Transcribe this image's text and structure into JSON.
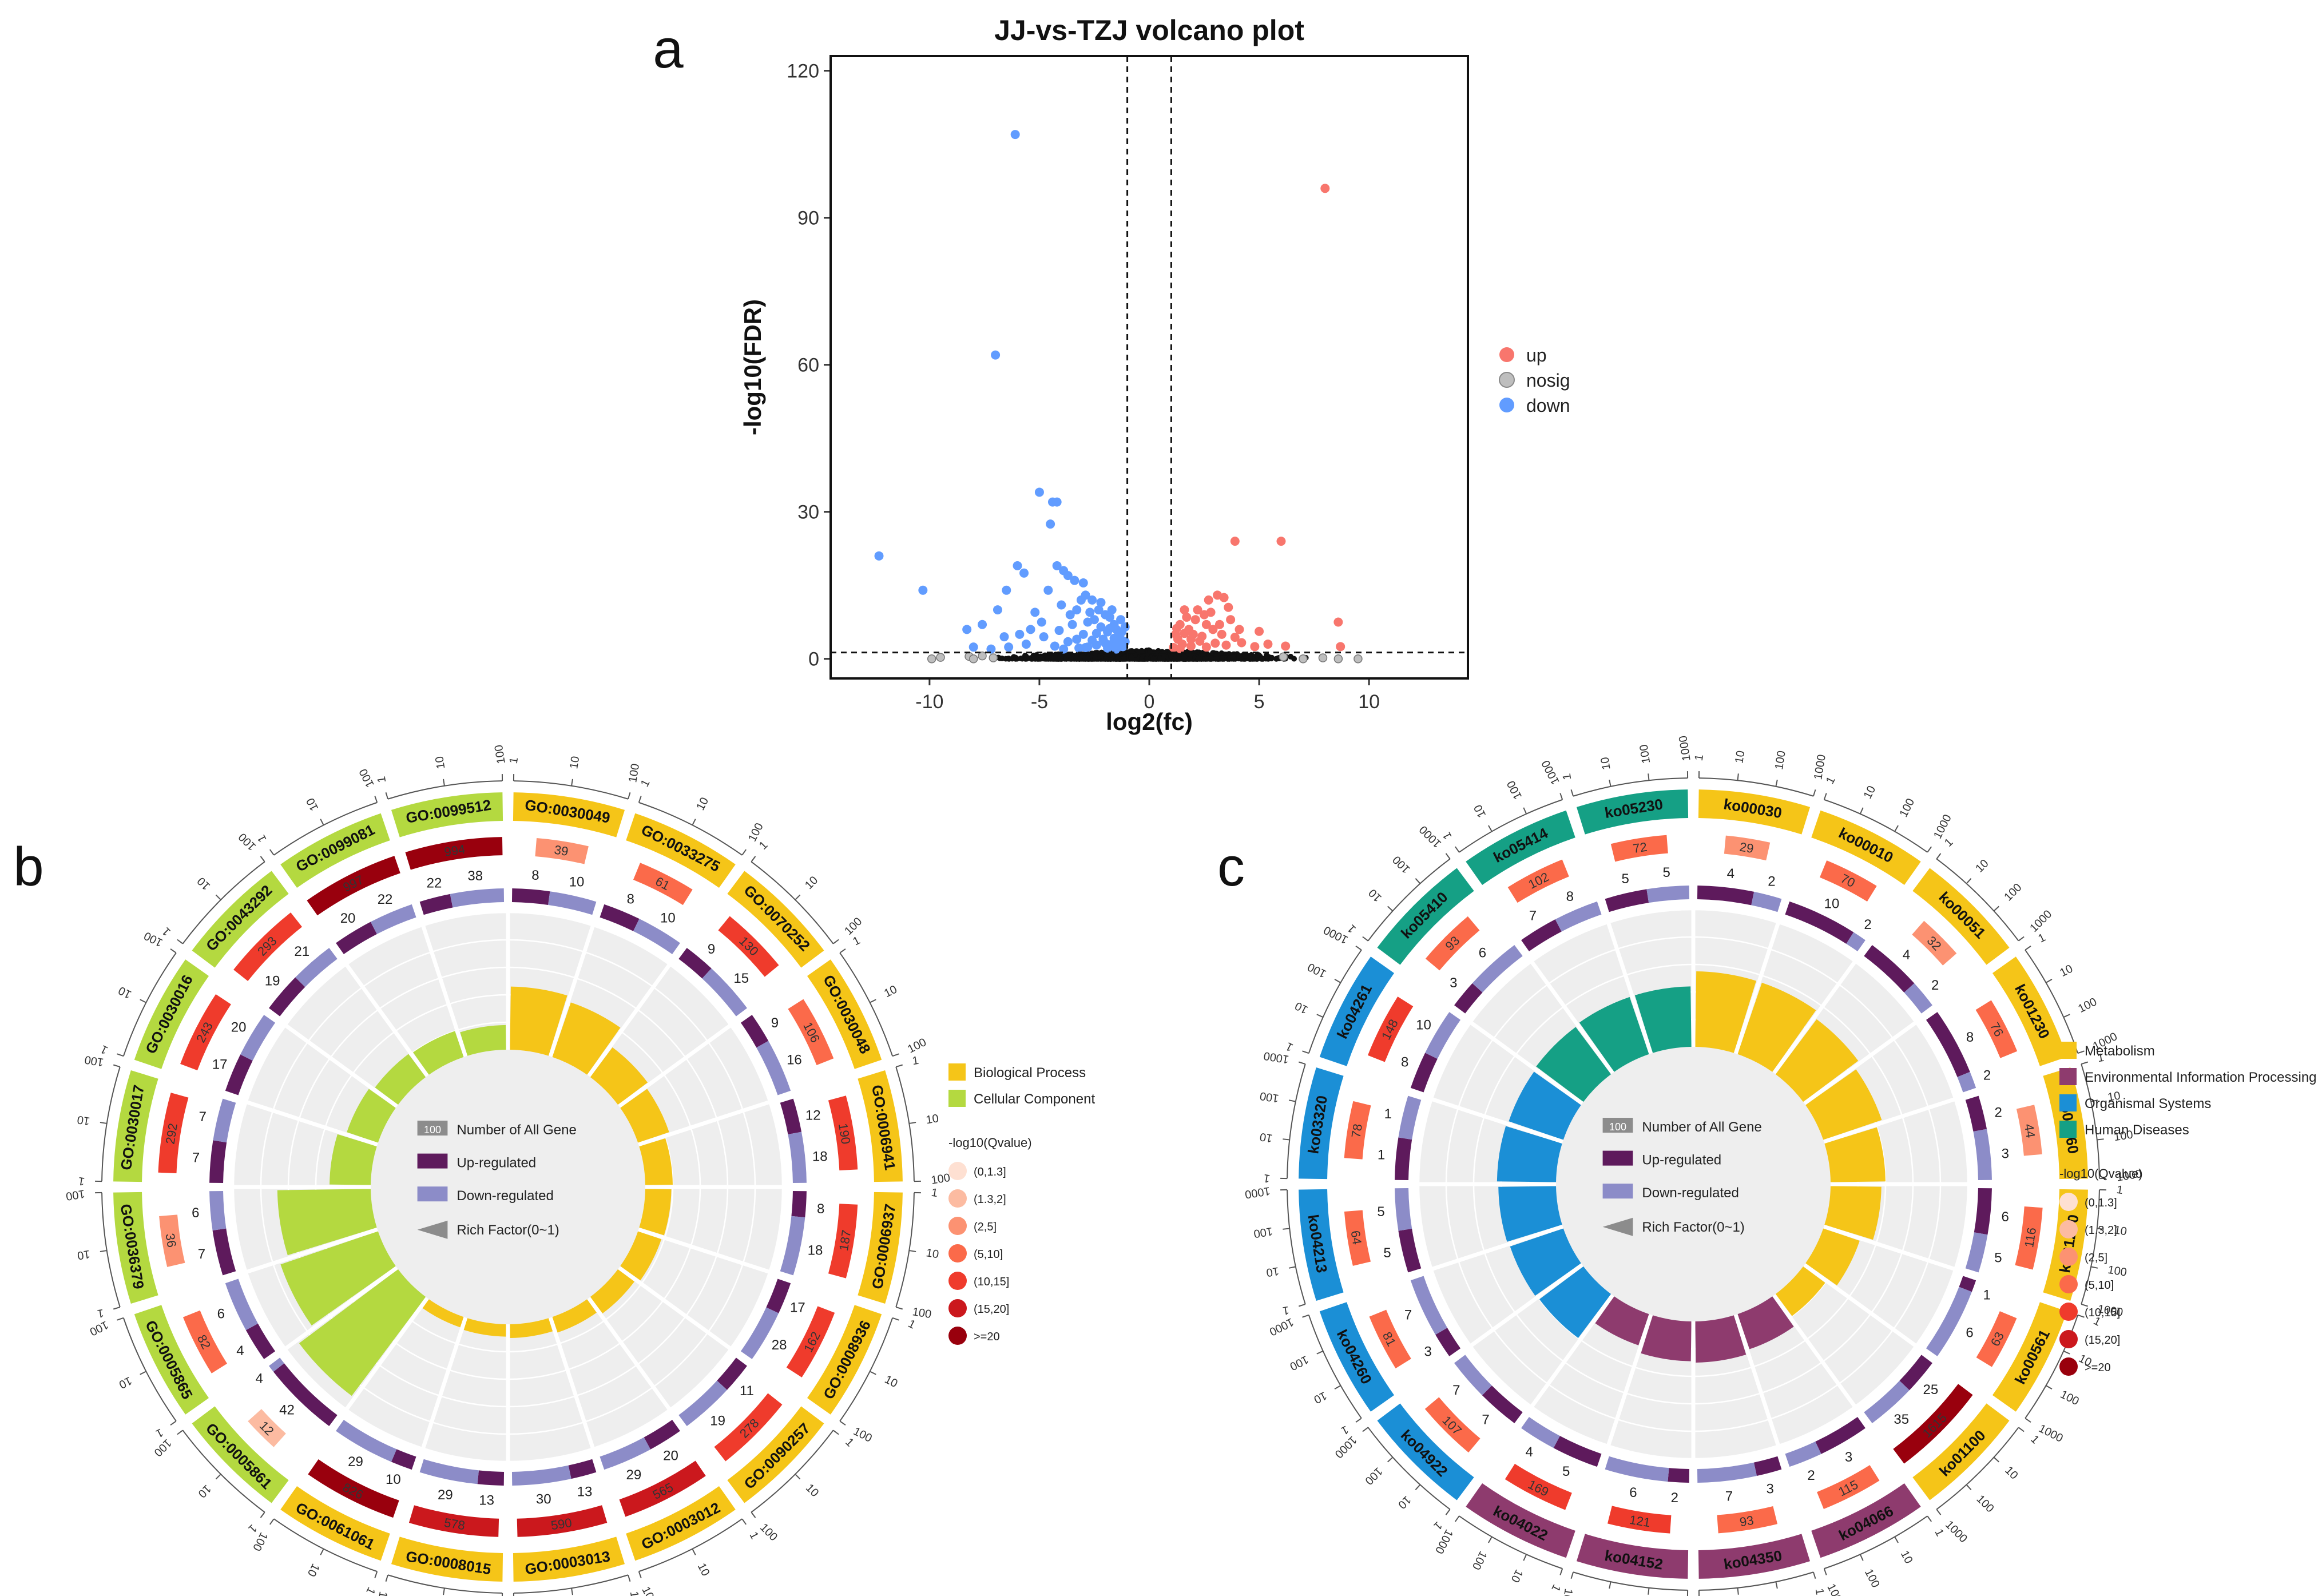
{
  "panels": {
    "a": "a",
    "b": "b",
    "c": "c"
  },
  "chart_data": [
    {
      "id": "volcano",
      "type": "scatter",
      "title": "JJ-vs-TZJ volcano plot",
      "xlabel": "log2(fc)",
      "ylabel": "-log10(FDR)",
      "xlim": [
        -14.5,
        14.5
      ],
      "ylim": [
        -4,
        123
      ],
      "xticks": [
        -10,
        -5,
        0,
        5,
        10
      ],
      "yticks": [
        0,
        30,
        60,
        90,
        120
      ],
      "thresholds": {
        "x": [
          -1,
          1
        ],
        "y": 1.3
      },
      "legend": [
        {
          "label": "up",
          "color": "#F8766D"
        },
        {
          "label": "nosig",
          "color": "#BEBEBE"
        },
        {
          "label": "down",
          "color": "#619CFF"
        }
      ],
      "series": [
        {
          "name": "down",
          "color": "#619CFF",
          "points": [
            [
              -6.1,
              107
            ],
            [
              -7.0,
              62
            ],
            [
              -5.0,
              34
            ],
            [
              -4.4,
              32
            ],
            [
              -4.2,
              32
            ],
            [
              -4.5,
              27.5
            ],
            [
              -12.3,
              21
            ],
            [
              -10.3,
              14
            ],
            [
              -6.0,
              19
            ],
            [
              -5.7,
              17.5
            ],
            [
              -6.5,
              14
            ],
            [
              -6.9,
              10
            ],
            [
              -7.6,
              7
            ],
            [
              -8.3,
              6
            ],
            [
              -4.2,
              19
            ],
            [
              -3.9,
              18
            ],
            [
              -3.7,
              17
            ],
            [
              -3.4,
              16
            ],
            [
              -3.0,
              15.5
            ],
            [
              -4.6,
              14
            ],
            [
              -2.9,
              13
            ],
            [
              -3.1,
              12
            ],
            [
              -2.6,
              12
            ],
            [
              -4.0,
              11
            ],
            [
              -3.3,
              10
            ],
            [
              -2.3,
              10
            ],
            [
              -2.0,
              9
            ],
            [
              -1.8,
              8.5
            ],
            [
              -2.5,
              8
            ],
            [
              -5.2,
              9.5
            ],
            [
              -3.5,
              7
            ],
            [
              -2.8,
              7.5
            ],
            [
              -1.6,
              7
            ],
            [
              -2.2,
              6.5
            ],
            [
              -1.5,
              6
            ],
            [
              -1.9,
              5.5
            ],
            [
              -3.0,
              5
            ],
            [
              -1.4,
              5
            ],
            [
              -4.8,
              4.5
            ],
            [
              -2.1,
              4
            ],
            [
              -2.6,
              3.8
            ],
            [
              -1.3,
              4
            ],
            [
              -3.7,
              3.5
            ],
            [
              -1.7,
              3
            ],
            [
              -2.4,
              2.8
            ],
            [
              -5.6,
              3
            ],
            [
              -1.2,
              2.5
            ],
            [
              -1.9,
              2.2
            ],
            [
              -3.2,
              2.2
            ],
            [
              -4.3,
              2.6
            ],
            [
              -6.4,
              2.4
            ],
            [
              -7.2,
              2.0
            ],
            [
              -1.5,
              2
            ],
            [
              -2.8,
              2.4
            ],
            [
              -3.9,
              2
            ],
            [
              -8.0,
              2.4
            ],
            [
              -4.9,
              7.5
            ],
            [
              -5.4,
              6
            ],
            [
              -6.6,
              4.5
            ],
            [
              -2.2,
              11.5
            ],
            [
              -1.7,
              10
            ],
            [
              -1.3,
              8
            ],
            [
              -2.7,
              9.5
            ],
            [
              -3.6,
              9
            ],
            [
              -1.8,
              6.2
            ],
            [
              -1.25,
              5.5
            ],
            [
              -1.1,
              3.5
            ],
            [
              -1.6,
              4.2
            ],
            [
              -2.4,
              5.2
            ],
            [
              -2.0,
              3.2
            ],
            [
              -1.4,
              2.8
            ],
            [
              -3.3,
              4
            ],
            [
              -4.1,
              5.8
            ],
            [
              -2.9,
              2.3
            ],
            [
              -5.9,
              5
            ],
            [
              -1.1,
              6.5
            ]
          ]
        },
        {
          "name": "up",
          "color": "#F8766D",
          "points": [
            [
              8.0,
              96
            ],
            [
              6.0,
              24
            ],
            [
              3.9,
              24
            ],
            [
              8.6,
              7.5
            ],
            [
              3.1,
              13
            ],
            [
              3.4,
              12.5
            ],
            [
              2.7,
              12
            ],
            [
              2.5,
              9
            ],
            [
              2.1,
              8
            ],
            [
              1.6,
              10
            ],
            [
              1.4,
              7
            ],
            [
              1.8,
              6
            ],
            [
              2.0,
              5
            ],
            [
              2.6,
              7
            ],
            [
              2.9,
              6
            ],
            [
              3.3,
              5
            ],
            [
              3.7,
              8
            ],
            [
              4.1,
              6
            ],
            [
              1.3,
              4
            ],
            [
              1.5,
              3
            ],
            [
              1.9,
              2.6
            ],
            [
              2.3,
              3.6
            ],
            [
              2.6,
              2.4
            ],
            [
              3.0,
              3.2
            ],
            [
              3.5,
              2.8
            ],
            [
              4.2,
              3.3
            ],
            [
              4.8,
              2.5
            ],
            [
              5.4,
              3
            ],
            [
              1.2,
              5
            ],
            [
              1.7,
              8.5
            ],
            [
              2.2,
              10
            ],
            [
              2.8,
              9.5
            ],
            [
              3.6,
              10.5
            ],
            [
              1.1,
              2.3
            ],
            [
              1.4,
              2.1
            ],
            [
              6.2,
              2.6
            ],
            [
              8.7,
              2.5
            ],
            [
              2.4,
              4.6
            ],
            [
              1.9,
              4
            ],
            [
              3.2,
              7
            ],
            [
              3.9,
              4.4
            ],
            [
              5.0,
              5.6
            ],
            [
              1.25,
              6.2
            ],
            [
              1.6,
              5.2
            ]
          ]
        }
      ]
    },
    {
      "id": "go_circos",
      "type": "circos",
      "row_values": {
        "number_all": [
          39,
          61,
          130,
          106,
          190,
          187,
          162,
          278,
          565,
          590,
          578,
          826,
          12,
          82,
          36,
          292,
          243,
          293,
          997,
          994
        ],
        "up": [
          8,
          8,
          9,
          9,
          12,
          8,
          17,
          11,
          20,
          13,
          13,
          10,
          42,
          4,
          7,
          7,
          17,
          19,
          20,
          22
        ],
        "down": [
          10,
          10,
          15,
          16,
          18,
          18,
          28,
          19,
          29,
          30,
          29,
          29,
          4,
          6,
          6,
          7,
          20,
          21,
          22,
          38
        ]
      },
      "categories": [
        {
          "id": "GO:0030049",
          "class": 0,
          "total": 39,
          "up": 8,
          "down": 10,
          "rich": 0.46
        },
        {
          "id": "GO:0033275",
          "class": 0,
          "total": 61,
          "up": 8,
          "down": 10,
          "rich": 0.42
        },
        {
          "id": "GO:0070252",
          "class": 0,
          "total": 130,
          "up": 9,
          "down": 15,
          "rich": 0.27
        },
        {
          "id": "GO:0030048",
          "class": 0,
          "total": 106,
          "up": 9,
          "down": 16,
          "rich": 0.24
        },
        {
          "id": "GO:0006941",
          "class": 0,
          "total": 190,
          "up": 12,
          "down": 18,
          "rich": 0.2
        },
        {
          "id": "GO:0006937",
          "class": 0,
          "total": 187,
          "up": 8,
          "down": 18,
          "rich": 0.19
        },
        {
          "id": "GO:0008936",
          "class": 0,
          "total": 162,
          "up": 17,
          "down": 28,
          "rich": 0.18
        },
        {
          "id": "GO:0090257",
          "class": 0,
          "total": 278,
          "up": 11,
          "down": 19,
          "rich": 0.15
        },
        {
          "id": "GO:0003012",
          "class": 0,
          "total": 565,
          "up": 20,
          "down": 29,
          "rich": 0.12
        },
        {
          "id": "GO:0003013",
          "class": 0,
          "total": 590,
          "up": 13,
          "down": 30,
          "rich": 0.1
        },
        {
          "id": "GO:0008015",
          "class": 0,
          "total": 578,
          "up": 13,
          "down": 29,
          "rich": 0.09
        },
        {
          "id": "GO:0061061",
          "class": 0,
          "total": 826,
          "up": 10,
          "down": 29,
          "rich": 0.08
        },
        {
          "id": "GO:0005861",
          "class": 1,
          "total": 12,
          "up": 42,
          "down": 4,
          "rich": 0.9
        },
        {
          "id": "GO:0005865",
          "class": 1,
          "total": 82,
          "up": 4,
          "down": 6,
          "rich": 0.75
        },
        {
          "id": "GO:0036379",
          "class": 1,
          "total": 36,
          "up": 7,
          "down": 6,
          "rich": 0.68
        },
        {
          "id": "GO:0030017",
          "class": 1,
          "total": 292,
          "up": 7,
          "down": 7,
          "rich": 0.3
        },
        {
          "id": "GO:0030016",
          "class": 1,
          "total": 243,
          "up": 17,
          "down": 20,
          "rich": 0.24
        },
        {
          "id": "GO:0043292",
          "class": 1,
          "total": 293,
          "up": 19,
          "down": 21,
          "rich": 0.21
        },
        {
          "id": "GO:0099081",
          "class": 1,
          "total": 997,
          "up": 20,
          "down": 22,
          "rich": 0.2
        },
        {
          "id": "GO:0099512",
          "class": 1,
          "total": 994,
          "up": 22,
          "down": 38,
          "rich": 0.18
        }
      ],
      "classes": [
        {
          "label": "Biological Process",
          "color": "#F5C518"
        },
        {
          "label": "Cellular Component",
          "color": "#B4D940"
        }
      ],
      "scale_labels": [
        "1",
        "10",
        "100"
      ],
      "center_legend": [
        "100",
        "Number of All Gene",
        "Up-regulated",
        "Down-regulated",
        "Rich Factor(0~1)"
      ],
      "qvalue_title": "-log10(Qvalue)",
      "qvalue_bins": [
        {
          "label": "(0,1.3]",
          "color": "#FEE0D2"
        },
        {
          "label": "(1.3,2]",
          "color": "#FCBBA1"
        },
        {
          "label": "(2,5]",
          "color": "#FC9272"
        },
        {
          "label": "(5,10]",
          "color": "#FB6A4A"
        },
        {
          "label": "(10,15]",
          "color": "#EF3B2C"
        },
        {
          "label": "(15,20]",
          "color": "#CB181D"
        },
        {
          "label": ">=20",
          "color": "#99000D"
        }
      ]
    },
    {
      "id": "kegg_circos",
      "type": "circos",
      "row_values": {
        "number_all": [
          29,
          70,
          32,
          76,
          44,
          116,
          63,
          1615,
          115,
          93,
          121,
          169,
          107,
          81,
          64,
          78,
          148,
          93,
          102,
          72
        ],
        "up": [
          4,
          10,
          4,
          8,
          2,
          6,
          1,
          25,
          3,
          3,
          2,
          5,
          7,
          3,
          5,
          1,
          8,
          3,
          7,
          5
        ],
        "down": [
          2,
          2,
          2,
          2,
          3,
          5,
          6,
          35,
          2,
          7,
          6,
          4,
          7,
          7,
          5,
          1,
          10,
          6,
          8,
          5
        ]
      },
      "categories": [
        {
          "id": "ko00030",
          "class": 0,
          "total": 29,
          "up": 4,
          "down": 2,
          "rich": 0.55
        },
        {
          "id": "ko00010",
          "class": 0,
          "total": 70,
          "up": 10,
          "down": 2,
          "rich": 0.55
        },
        {
          "id": "ko00051",
          "class": 0,
          "total": 32,
          "up": 4,
          "down": 2,
          "rich": 0.5
        },
        {
          "id": "ko01230",
          "class": 0,
          "total": 76,
          "up": 8,
          "down": 2,
          "rich": 0.45
        },
        {
          "id": "ko00260",
          "class": 0,
          "total": 44,
          "up": 2,
          "down": 3,
          "rich": 0.4
        },
        {
          "id": "ko01200",
          "class": 0,
          "total": 116,
          "up": 6,
          "down": 5,
          "rich": 0.37
        },
        {
          "id": "ko00561",
          "class": 0,
          "total": 63,
          "up": 1,
          "down": 6,
          "rich": 0.28
        },
        {
          "id": "ko01100",
          "class": 0,
          "total": 1615,
          "up": 25,
          "down": 35,
          "rich": 0.2
        },
        {
          "id": "ko04066",
          "class": 1,
          "total": 115,
          "up": 3,
          "down": 2,
          "rich": 0.27
        },
        {
          "id": "ko04350",
          "class": 1,
          "total": 93,
          "up": 3,
          "down": 7,
          "rich": 0.3
        },
        {
          "id": "ko04152",
          "class": 1,
          "total": 121,
          "up": 2,
          "down": 6,
          "rich": 0.29
        },
        {
          "id": "ko04022",
          "class": 1,
          "total": 169,
          "up": 5,
          "down": 4,
          "rich": 0.24
        },
        {
          "id": "ko04922",
          "class": 2,
          "total": 107,
          "up": 7,
          "down": 7,
          "rich": 0.4
        },
        {
          "id": "ko04260",
          "class": 2,
          "total": 81,
          "up": 3,
          "down": 7,
          "rich": 0.41
        },
        {
          "id": "ko04213",
          "class": 2,
          "total": 64,
          "up": 5,
          "down": 5,
          "rich": 0.42
        },
        {
          "id": "ko03320",
          "class": 2,
          "total": 78,
          "up": 1,
          "down": 1,
          "rich": 0.43
        },
        {
          "id": "ko04261",
          "class": 2,
          "total": 148,
          "up": 8,
          "down": 10,
          "rich": 0.42
        },
        {
          "id": "ko05410",
          "class": 3,
          "total": 93,
          "up": 3,
          "down": 6,
          "rich": 0.43
        },
        {
          "id": "ko05414",
          "class": 3,
          "total": 102,
          "up": 7,
          "down": 8,
          "rich": 0.44
        },
        {
          "id": "ko05230",
          "class": 3,
          "total": 72,
          "up": 5,
          "down": 5,
          "rich": 0.44
        }
      ],
      "classes": [
        {
          "label": "Metabolism",
          "color": "#F5C518"
        },
        {
          "label": "Environmental Information Processing",
          "color": "#8E3B6E"
        },
        {
          "label": "Organismal Systems",
          "color": "#1B8FD6"
        },
        {
          "label": "Human Diseases",
          "color": "#15A085"
        }
      ],
      "scale_labels": [
        "1",
        "10",
        "100",
        "1000"
      ],
      "center_legend": [
        "100",
        "Number of All Gene",
        "Up-regulated",
        "Down-regulated",
        "Rich Factor(0~1)"
      ],
      "qvalue_title": "-log10(Qvalue)",
      "qvalue_bins": [
        {
          "label": "(0,1.3]",
          "color": "#FEE0D2"
        },
        {
          "label": "(1.3,2]",
          "color": "#FCBBA1"
        },
        {
          "label": "(2,5]",
          "color": "#FC9272"
        },
        {
          "label": "(5,10]",
          "color": "#FB6A4A"
        },
        {
          "label": "(10,15]",
          "color": "#EF3B2C"
        },
        {
          "label": "(15,20]",
          "color": "#CB181D"
        },
        {
          "label": ">=20",
          "color": "#99000D"
        }
      ]
    }
  ]
}
